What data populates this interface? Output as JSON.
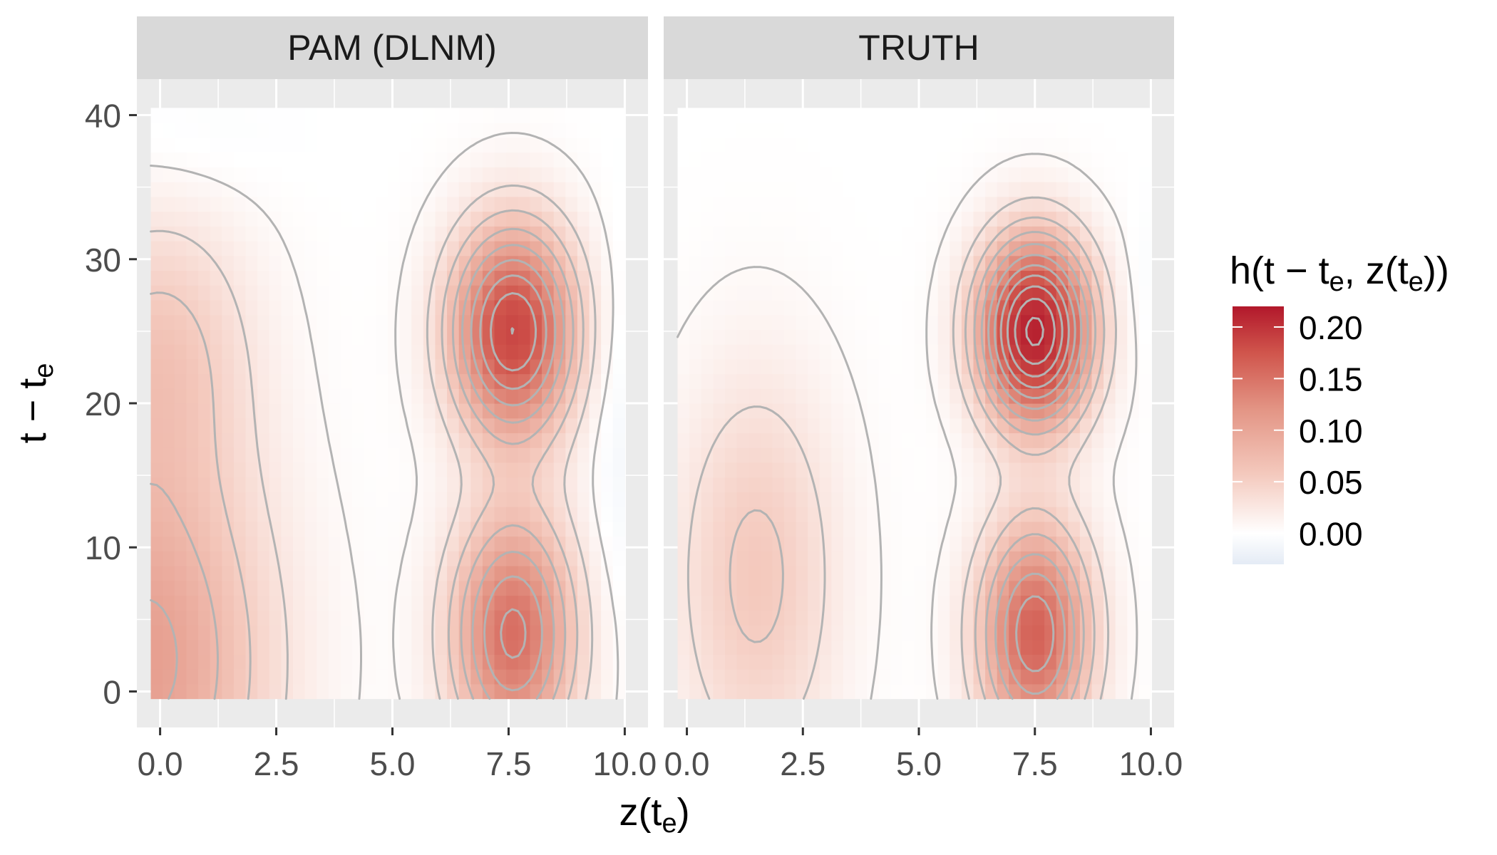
{
  "chart_data": {
    "type": "heatmap",
    "xlabel": "z(t",
    "xlabel_sub": "e",
    "xlabel_close": ")",
    "ylabel": "t − t",
    "ylabel_sub": "e",
    "x_ticks": [
      "0.0",
      "2.5",
      "5.0",
      "7.5",
      "10.0"
    ],
    "x_tick_values": [
      0,
      2.5,
      5,
      7.5,
      10
    ],
    "y_ticks": [
      "0",
      "10",
      "20",
      "30",
      "40"
    ],
    "y_tick_values": [
      0,
      10,
      20,
      30,
      40
    ],
    "xlim": [
      -0.5,
      10.5
    ],
    "ylim": [
      -2.5,
      42.5
    ],
    "data_extent": {
      "x": [
        -0.2,
        10.0
      ],
      "y": [
        -0.5,
        40.5
      ]
    },
    "grid": true,
    "legend": {
      "title_parts": [
        "h",
        "(",
        "t − t",
        "e",
        ", z(t",
        "e",
        "))"
      ],
      "title_plain": "h(t − t_e, z(t_e))",
      "breaks": [
        "0.20",
        "0.15",
        "0.10",
        "0.05",
        "0.00"
      ],
      "break_values": [
        0.2,
        0.15,
        0.1,
        0.05,
        0.0
      ],
      "limits": [
        -0.03,
        0.22
      ],
      "placement": "right",
      "colors": {
        "low": "#e4ebf5",
        "mid": "#ffffff",
        "high": "#b2182b"
      }
    },
    "contour_color": "#b3b3b3",
    "panels": [
      {
        "title": "PAM (DLNM)",
        "peaks": [
          {
            "x": 7.6,
            "y": 25,
            "value": 0.17
          },
          {
            "x": 7.6,
            "y": 4,
            "value": 0.13
          },
          {
            "x": 0.2,
            "y": 24,
            "value": 0.05
          },
          {
            "x": 0.0,
            "y": 2,
            "value": 0.09
          }
        ]
      },
      {
        "title": "TRUTH",
        "peaks": [
          {
            "x": 7.5,
            "y": 25,
            "value": 0.21
          },
          {
            "x": 7.5,
            "y": 4,
            "value": 0.14
          },
          {
            "x": 1.5,
            "y": 8,
            "value": 0.05
          }
        ]
      }
    ]
  }
}
